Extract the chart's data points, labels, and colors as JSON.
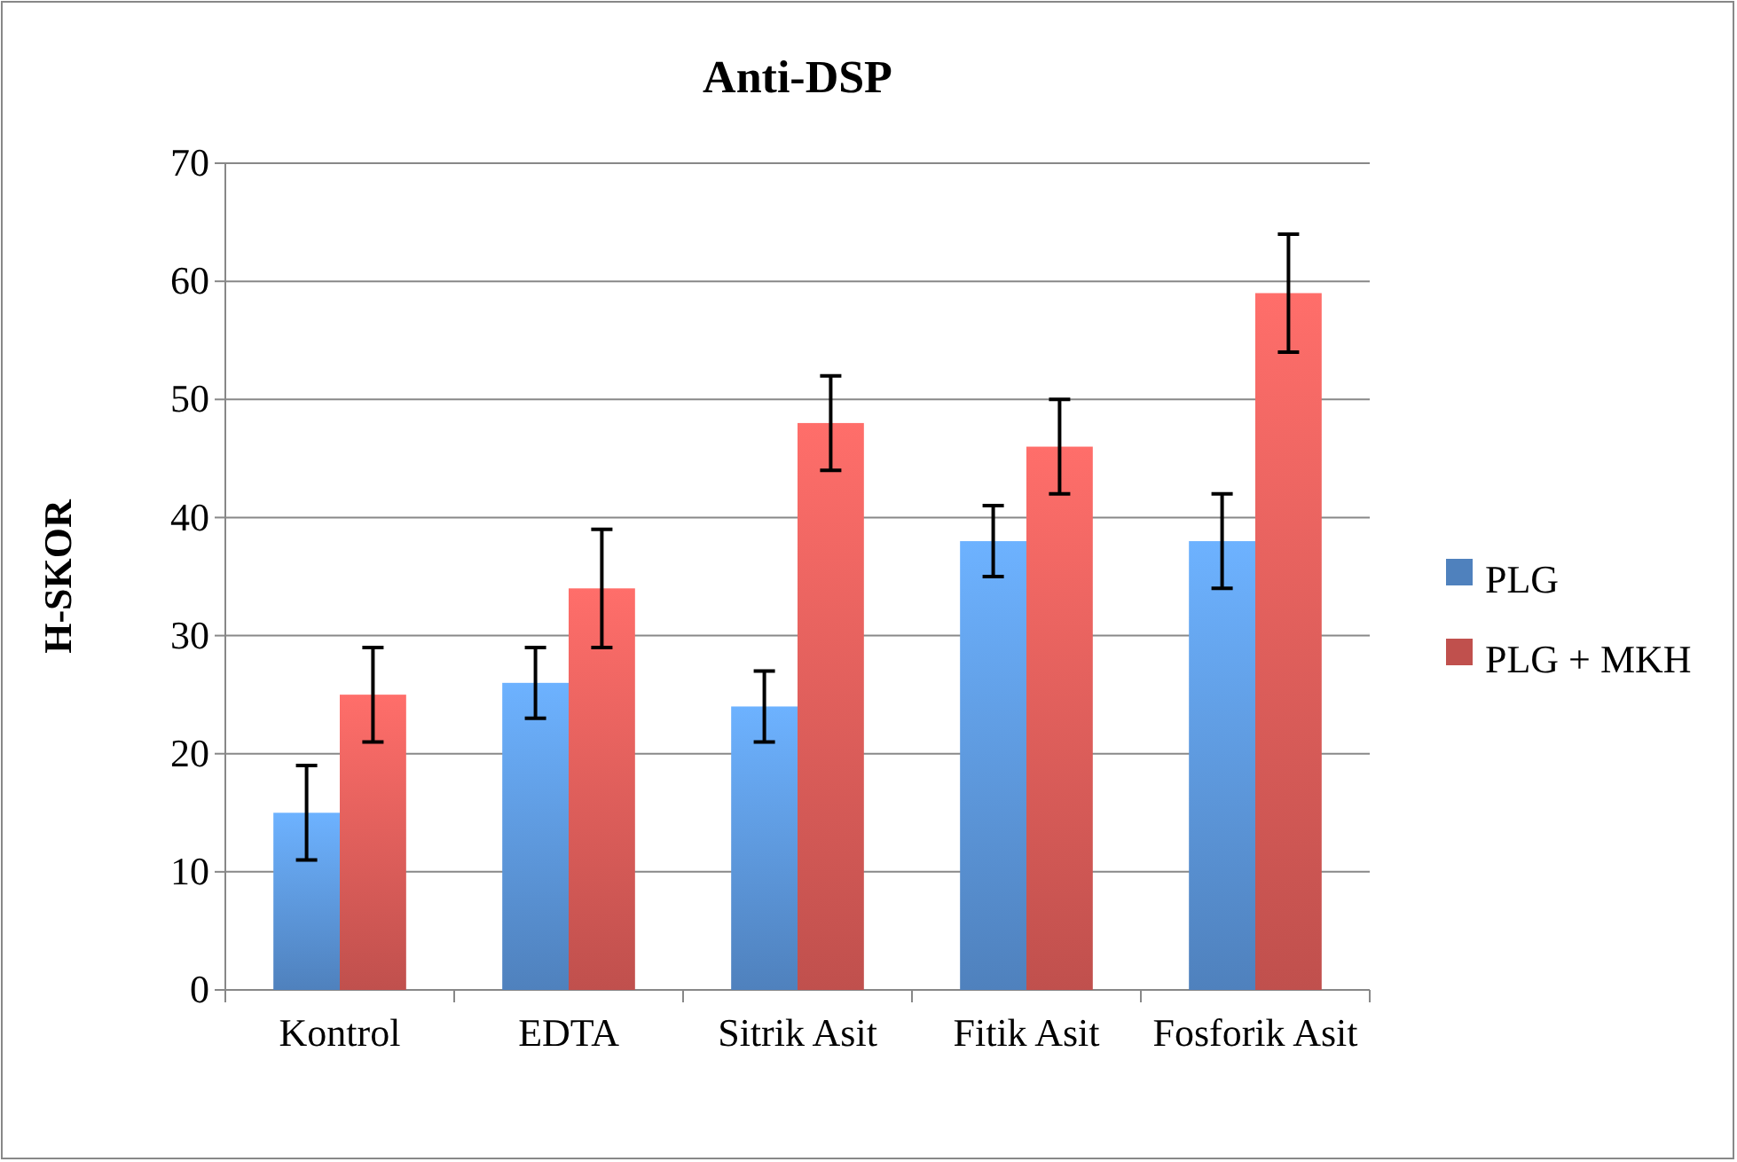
{
  "chart_data": {
    "type": "bar",
    "title": "Anti-DSP",
    "ylabel": "H-SKOR",
    "categories": [
      "Kontrol",
      "EDTA",
      "Sitrik Asit",
      "Fitik Asit",
      "Fosforik Asit"
    ],
    "series": [
      {
        "name": "PLG",
        "color": "#4f81bd",
        "values": [
          15,
          26,
          24,
          38,
          38
        ],
        "errors": [
          4,
          3,
          3,
          3,
          4
        ]
      },
      {
        "name": "PLG + MKH",
        "color": "#c0504d",
        "values": [
          25,
          34,
          48,
          46,
          59
        ],
        "errors": [
          4,
          5,
          4,
          4,
          5
        ]
      }
    ],
    "ylim": [
      0,
      70
    ],
    "yticks": [
      0,
      10,
      20,
      30,
      40,
      50,
      60,
      70
    ],
    "grid": "y",
    "legend": "right"
  }
}
